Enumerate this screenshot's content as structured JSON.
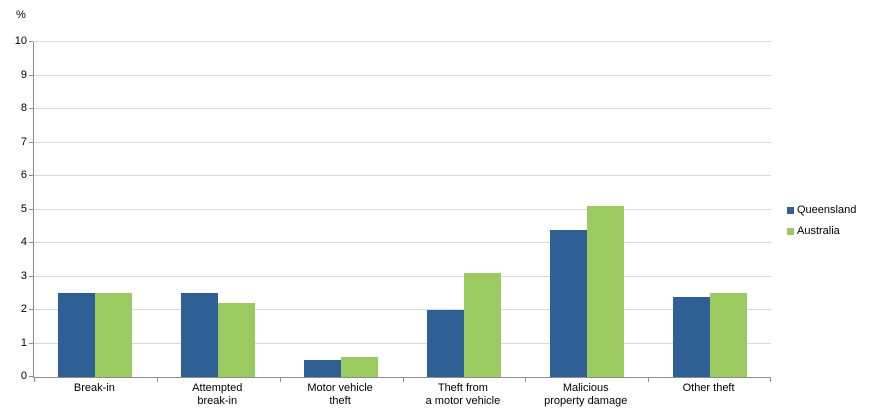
{
  "chart_data": {
    "type": "bar",
    "title": "",
    "ylabel": "%",
    "xlabel": "",
    "categories": [
      "Break-in",
      "Attempted\nbreak-in",
      "Motor vehicle\ntheft",
      "Theft from\na motor vehicle",
      "Malicious\nproperty damage",
      "Other theft"
    ],
    "series": [
      {
        "name": "Queensland",
        "color": "#2e6096",
        "values": [
          2.5,
          2.5,
          0.5,
          2.0,
          4.4,
          2.4
        ]
      },
      {
        "name": "Australia",
        "color": "#9aca60",
        "values": [
          2.5,
          2.2,
          0.6,
          3.1,
          5.1,
          2.5
        ]
      }
    ],
    "ylim": [
      0,
      10
    ],
    "ytick_step": 1,
    "grid": true,
    "legend_position": "right",
    "colors": {
      "gridline": "#d9d9d9",
      "axis": "#8c8c8c",
      "background": "#ffffff",
      "text": "#000000"
    }
  }
}
